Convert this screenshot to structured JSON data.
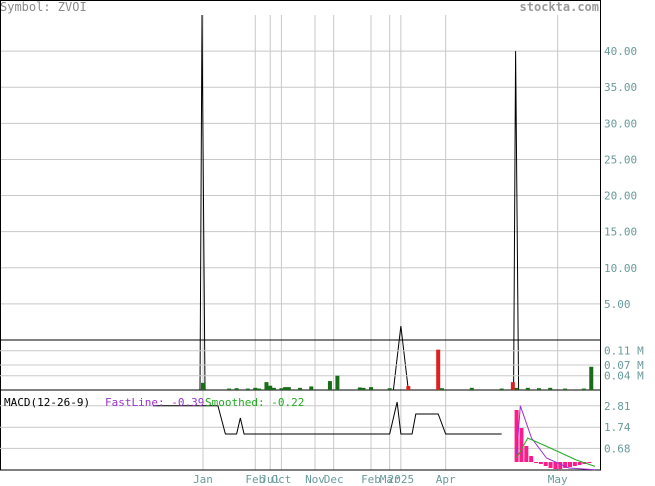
{
  "header": {
    "symbol_label": "Symbol: ZVOI",
    "site": "stockta.com"
  },
  "colors": {
    "grid": "#c8c8c8",
    "axis": "#000000",
    "price_line": "#000000",
    "vol_up": "#1a6b1a",
    "vol_down": "#e02020",
    "macd_fast": "#9932cc",
    "macd_smooth": "#22aa22",
    "histogram": "#ff1a8c",
    "axis_text": "#6a9a9a"
  },
  "chart_data": [
    {
      "name": "price",
      "type": "line",
      "y_tick_labels": [
        "40.00",
        "35.00",
        "30.00",
        "25.00",
        "20.00",
        "15.00",
        "10.00",
        "5.00"
      ],
      "y_ticks": [
        40,
        35,
        30,
        25,
        20,
        15,
        10,
        5
      ],
      "ylim": [
        0,
        45
      ],
      "spikes": [
        {
          "x_label": "Jan",
          "value": 45
        },
        {
          "x_label": "Apr",
          "value": 40
        }
      ]
    },
    {
      "name": "volume",
      "type": "bar",
      "y_tick_labels": [
        "0.11 M",
        "0.07 M",
        "0.04 M"
      ],
      "y_ticks": [
        0.11,
        0.07,
        0.04
      ],
      "ylim": [
        0,
        0.14
      ],
      "bars": [
        {
          "i": 0,
          "v": 0.02,
          "up": true
        },
        {
          "i": 7,
          "v": 0.004,
          "up": true
        },
        {
          "i": 9,
          "v": 0.005,
          "up": true
        },
        {
          "i": 12,
          "v": 0.004,
          "up": true
        },
        {
          "i": 14,
          "v": 0.006,
          "up": true
        },
        {
          "i": 15,
          "v": 0.004,
          "up": true
        },
        {
          "i": 17,
          "v": 0.022,
          "up": true
        },
        {
          "i": 18,
          "v": 0.012,
          "up": true
        },
        {
          "i": 19,
          "v": 0.006,
          "up": true
        },
        {
          "i": 21,
          "v": 0.005,
          "up": true
        },
        {
          "i": 22,
          "v": 0.008,
          "up": true
        },
        {
          "i": 23,
          "v": 0.008,
          "up": true
        },
        {
          "i": 26,
          "v": 0.006,
          "up": true
        },
        {
          "i": 29,
          "v": 0.01,
          "up": true
        },
        {
          "i": 34,
          "v": 0.025,
          "up": true
        },
        {
          "i": 36,
          "v": 0.04,
          "up": true
        },
        {
          "i": 42,
          "v": 0.007,
          "up": true
        },
        {
          "i": 43,
          "v": 0.006,
          "up": true
        },
        {
          "i": 45,
          "v": 0.008,
          "up": true
        },
        {
          "i": 50,
          "v": 0.005,
          "up": true
        },
        {
          "i": 55,
          "v": 0.011,
          "up": false
        },
        {
          "i": 63,
          "v": 0.113,
          "up": false
        },
        {
          "i": 64,
          "v": 0.005,
          "up": true
        },
        {
          "i": 72,
          "v": 0.006,
          "up": true
        },
        {
          "i": 80,
          "v": 0.004,
          "up": true
        },
        {
          "i": 83,
          "v": 0.022,
          "up": false
        },
        {
          "i": 84,
          "v": 0.006,
          "up": true
        },
        {
          "i": 87,
          "v": 0.006,
          "up": true
        },
        {
          "i": 90,
          "v": 0.005,
          "up": true
        },
        {
          "i": 93,
          "v": 0.006,
          "up": true
        },
        {
          "i": 97,
          "v": 0.004,
          "up": true
        },
        {
          "i": 102,
          "v": 0.004,
          "up": true
        },
        {
          "i": 104,
          "v": 0.065,
          "up": true
        }
      ]
    },
    {
      "name": "macd",
      "type": "line",
      "title": "MACD(12-26-9)",
      "fast_label": "FastLine: -0.39",
      "smooth_label": "Smoothed: -0.22",
      "y_tick_labels": [
        "2.81",
        "1.74",
        "0.68"
      ],
      "y_ticks": [
        2.81,
        1.74,
        0.68
      ],
      "ylim": [
        -0.4,
        3.6
      ]
    }
  ],
  "x_axis": {
    "labels": [
      {
        "text": "Jan",
        "i": 0
      },
      {
        "text": "Feb",
        "i": 14
      },
      {
        "text": "Jul",
        "i": 18
      },
      {
        "text": "Oct",
        "i": 21
      },
      {
        "text": "Nov",
        "i": 30
      },
      {
        "text": "Dec",
        "i": 35
      },
      {
        "text": "Feb",
        "i": 45
      },
      {
        "text": "Mar",
        "i": 50
      },
      {
        "text": "2025",
        "i": 53
      },
      {
        "text": "Apr",
        "i": 65
      },
      {
        "text": "May",
        "i": 95
      }
    ]
  }
}
